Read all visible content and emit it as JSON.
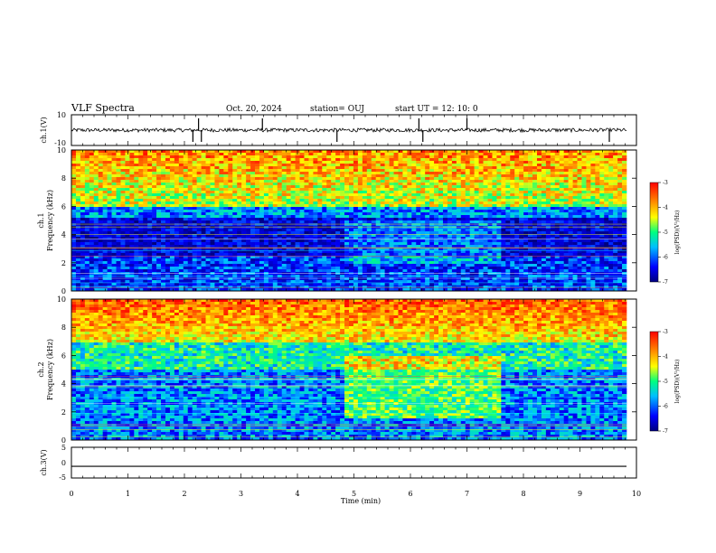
{
  "header": {
    "title": "VLF Spectra",
    "date": "Oct. 20, 2024",
    "station": "station= OUJ",
    "start": "start  UT =   12: 10: 0"
  },
  "chart_data": [
    {
      "type": "line",
      "panel": "ch1-waveform",
      "ylabel": "ch.1(V)",
      "ylim": [
        -10,
        10
      ],
      "yticks": [
        "10",
        "-10"
      ],
      "x_range_min": [
        0,
        10
      ],
      "description_values": {
        "baseline_v": 0,
        "typical_amplitude_v": 1,
        "spike_times_min": [
          2.15,
          2.25,
          2.3,
          3.38,
          4.7,
          6.15,
          6.22,
          7.0,
          9.52
        ]
      }
    },
    {
      "type": "heatmap",
      "panel": "ch1-spectrogram",
      "ylabel": "ch.1\nFrequency (kHz)",
      "ylim": [
        0,
        10
      ],
      "yticks": [
        "0",
        "2",
        "4",
        "6",
        "8",
        "10"
      ],
      "colorbar": {
        "label": "log(PSD)(V²/Hz)",
        "range": [
          -7,
          -3
        ],
        "ticks": [
          "-3",
          "-4",
          "-5",
          "-6",
          "-7"
        ]
      },
      "features": {
        "low_power_band_khz": [
          2.5,
          5.5
        ],
        "high_power_above_khz": 6,
        "event_window_min": [
          4.8,
          7.6
        ]
      }
    },
    {
      "type": "heatmap",
      "panel": "ch2-spectrogram",
      "ylabel": "ch.2\nFrequency (kHz)",
      "ylim": [
        0,
        10
      ],
      "yticks": [
        "0",
        "2",
        "4",
        "6",
        "8",
        "10"
      ],
      "colorbar": {
        "label": "log(PSD)(V²/Hz)",
        "range": [
          -7,
          -3
        ],
        "ticks": [
          "-3",
          "-4",
          "-5",
          "-6",
          "-7"
        ]
      },
      "features": {
        "low_power_band_khz": [
          0,
          5
        ],
        "high_power_above_khz": 7,
        "event_window_min": [
          4.8,
          7.6
        ]
      }
    },
    {
      "type": "line",
      "panel": "ch3-waveform",
      "ylabel": "ch.3(V)",
      "ylim": [
        -5,
        5
      ],
      "yticks": [
        "5",
        "0",
        "-5"
      ],
      "values_constant_v": -1.2
    }
  ],
  "xaxis": {
    "label": "Time (min)",
    "ticks": [
      "0",
      "1",
      "2",
      "3",
      "4",
      "5",
      "6",
      "7",
      "8",
      "9",
      "10"
    ],
    "range": [
      0,
      10
    ]
  },
  "colors": {
    "axis": "#000000",
    "colormap": [
      "#00007f",
      "#0000ff",
      "#00bfff",
      "#00ff7f",
      "#ffff00",
      "#ff8000",
      "#ff0000"
    ]
  }
}
